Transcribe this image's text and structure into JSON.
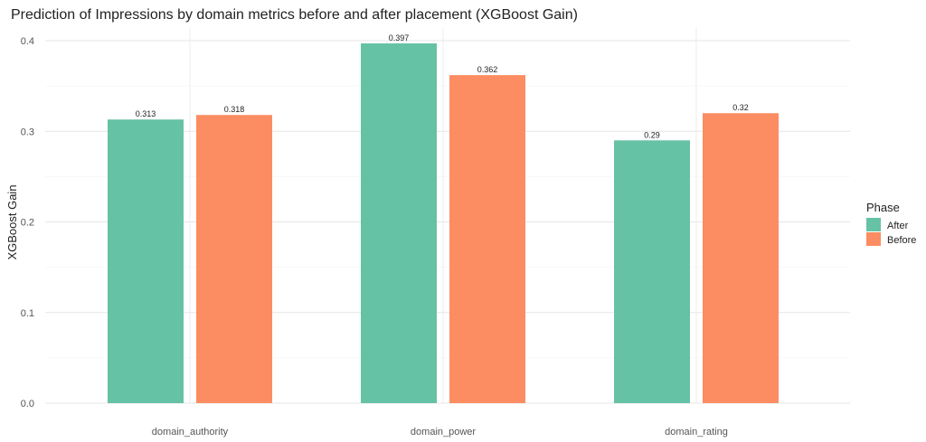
{
  "chart_data": {
    "type": "bar",
    "title": "Prediction of Impressions by domain metrics before and after placement (XGBoost Gain)",
    "xlabel": "",
    "ylabel": "XGBoost Gain",
    "categories": [
      "domain_authority",
      "domain_power",
      "domain_rating"
    ],
    "series": [
      {
        "name": "After",
        "values": [
          0.313,
          0.397,
          0.29
        ],
        "color": "#66c2a5"
      },
      {
        "name": "Before",
        "values": [
          0.318,
          0.362,
          0.32
        ],
        "color": "#fc8d62"
      }
    ],
    "data_labels": [
      [
        "0.313",
        "0.318"
      ],
      [
        "0.397",
        "0.362"
      ],
      [
        "0.29",
        "0.32"
      ]
    ],
    "ylim": [
      0,
      0.4
    ],
    "yticks": [
      "0.0",
      "0.1",
      "0.2",
      "0.3",
      "0.4"
    ],
    "grid": true,
    "legend": {
      "title": "Phase",
      "position": "right"
    }
  }
}
